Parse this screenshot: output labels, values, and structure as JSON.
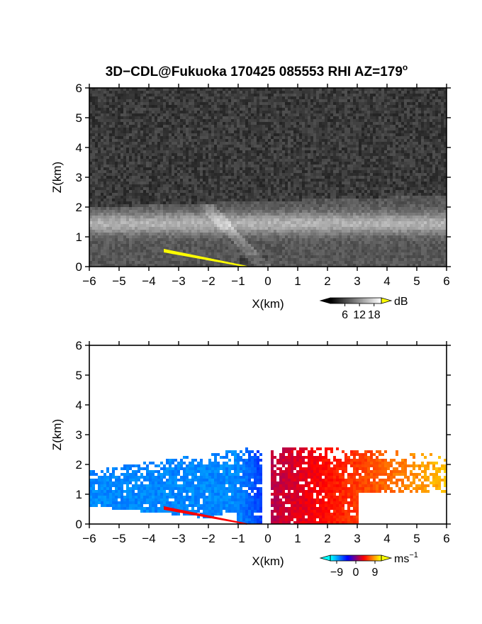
{
  "title": "3D−CDL@Fukuoka 170425 085553 RHI AZ=179°",
  "title_main": "3D−CDL@Fukuoka 170425 085553 RHI AZ=179",
  "title_sup": "o",
  "chart_data": [
    {
      "type": "heatmap",
      "quantity": "backscatter intensity",
      "xlabel": "X(km)",
      "ylabel": "Z(km)",
      "xlim": [
        -6,
        6
      ],
      "ylim": [
        0,
        6
      ],
      "xticks": [
        "−6",
        "−5",
        "−4",
        "−3",
        "−2",
        "−1",
        "0",
        "1",
        "2",
        "3",
        "4",
        "5",
        "6"
      ],
      "yticks": [
        "0",
        "1",
        "2",
        "3",
        "4",
        "5",
        "6"
      ],
      "colorbar": {
        "unit": "dB",
        "ticks": [
          "6",
          "12",
          "18"
        ],
        "tick_values": [
          6,
          12,
          18
        ],
        "range": [
          0,
          21
        ],
        "colors": [
          "#000000",
          "#ffffff",
          "#ffff00"
        ]
      },
      "features": {
        "background_dB": 3,
        "aerosol_layer": {
          "x_start": -6,
          "x_end": 6,
          "z_top_west": 2.0,
          "z_top_east": 2.4,
          "peak_dB": 14
        },
        "front_edge": {
          "x_top": -2.3,
          "z_top": 2.3,
          "x_bottom": -0.2,
          "z_bottom": 0.05
        },
        "ground_clutter": {
          "x_start": -3.5,
          "z_start": 0.55,
          "x_end": -0.7,
          "z_end": 0.0,
          "color": "#ffff00"
        }
      }
    },
    {
      "type": "heatmap",
      "quantity": "Doppler velocity",
      "xlabel": "X(km)",
      "ylabel": "Z(km)",
      "xlim": [
        -6,
        6
      ],
      "ylim": [
        0,
        6
      ],
      "xticks": [
        "−6",
        "−5",
        "−4",
        "−3",
        "−2",
        "−1",
        "0",
        "1",
        "2",
        "3",
        "4",
        "5",
        "6"
      ],
      "yticks": [
        "0",
        "1",
        "2",
        "3",
        "4",
        "5",
        "6"
      ],
      "colorbar": {
        "unit": "ms",
        "unit_sup": "−1",
        "ticks": [
          "−9",
          "0",
          "9"
        ],
        "tick_values": [
          -9,
          0,
          9
        ],
        "range": [
          -12,
          12
        ],
        "colors": [
          "#00ffff",
          "#0000ff",
          "#ff0000",
          "#ffff00"
        ]
      },
      "features": {
        "approaching_side": {
          "x_start": -6,
          "x_end": -0.2,
          "z_top_west": 1.8,
          "z_top_near_origin": 2.6,
          "velocity_ms": -9
        },
        "receding_side": {
          "x_start": 0.1,
          "x_end": 6,
          "z_top_near_origin": 2.6,
          "z_top_east": 2.4,
          "velocity_ms": 7
        },
        "ground_clutter": {
          "x_start": -3.5,
          "z_start": 0.55,
          "x_end": -0.7,
          "z_end": 0.0
        }
      }
    }
  ]
}
